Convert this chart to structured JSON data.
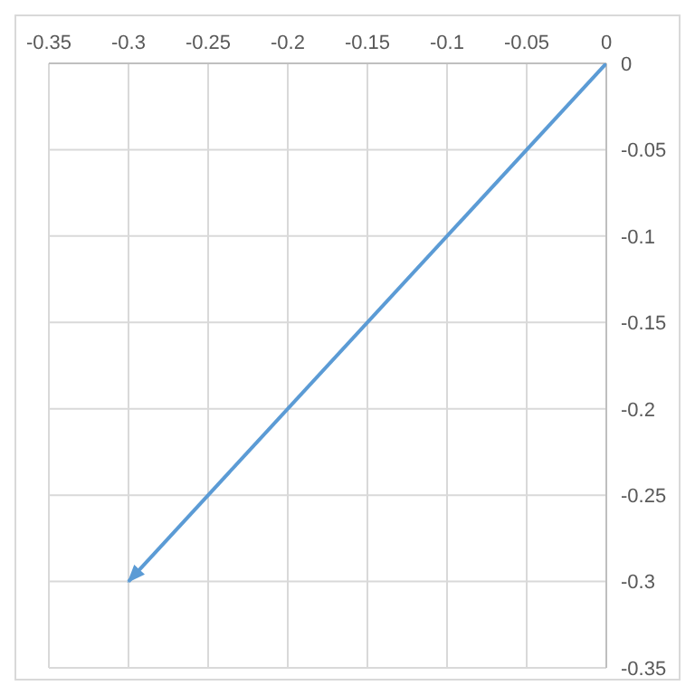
{
  "chart_data": {
    "type": "line",
    "x": [
      0,
      -0.3
    ],
    "series": [
      {
        "color": "#5b9bd5",
        "values": [
          0,
          -0.3
        ]
      }
    ],
    "xlim": [
      -0.35,
      0
    ],
    "xticks": [
      -0.35,
      -0.3,
      -0.25,
      -0.2,
      -0.15,
      -0.1,
      -0.05,
      0
    ],
    "ylim": [
      -0.35,
      0
    ],
    "yticks": [
      -0.35,
      -0.3,
      -0.25,
      -0.2,
      -0.15,
      -0.1,
      -0.05,
      0
    ],
    "grid": true
  }
}
